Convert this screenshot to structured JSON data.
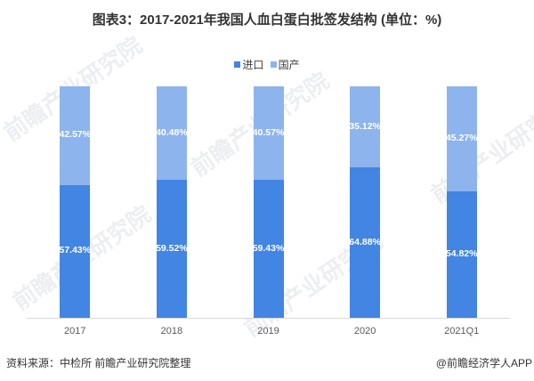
{
  "title": "图表3：2017-2021年我国人血白蛋白批签发结构 (单位：%)",
  "legend": [
    {
      "label": "进口",
      "color": "#4285e2"
    },
    {
      "label": "国产",
      "color": "#8db4ed"
    }
  ],
  "source": "资料来源：中检所 前瞻产业研究院整理",
  "credit": "@前瞻经济学人APP",
  "watermark": "前瞻产业研究院",
  "chart_data": {
    "type": "bar",
    "stacked": true,
    "percent": true,
    "title": "图表3：2017-2021年我国人血白蛋白批签发结构 (单位：%)",
    "categories": [
      "2017",
      "2018",
      "2019",
      "2020",
      "2021Q1"
    ],
    "series": [
      {
        "name": "进口",
        "color": "#4285e2",
        "values": [
          57.43,
          59.52,
          59.43,
          64.88,
          54.82
        ],
        "labels": [
          "57.43%",
          "59.52%",
          "59.43%",
          "64.88%",
          "54.82%"
        ]
      },
      {
        "name": "国产",
        "color": "#8db4ed",
        "values": [
          42.57,
          40.48,
          40.57,
          35.12,
          45.27
        ],
        "labels": [
          "42.57%",
          "40.48%",
          "40.57%",
          "35.12%",
          "45.27%"
        ]
      }
    ],
    "xlabel": "",
    "ylabel": "",
    "ylim": [
      0,
      100
    ],
    "grid": false,
    "legend_position": "top"
  }
}
